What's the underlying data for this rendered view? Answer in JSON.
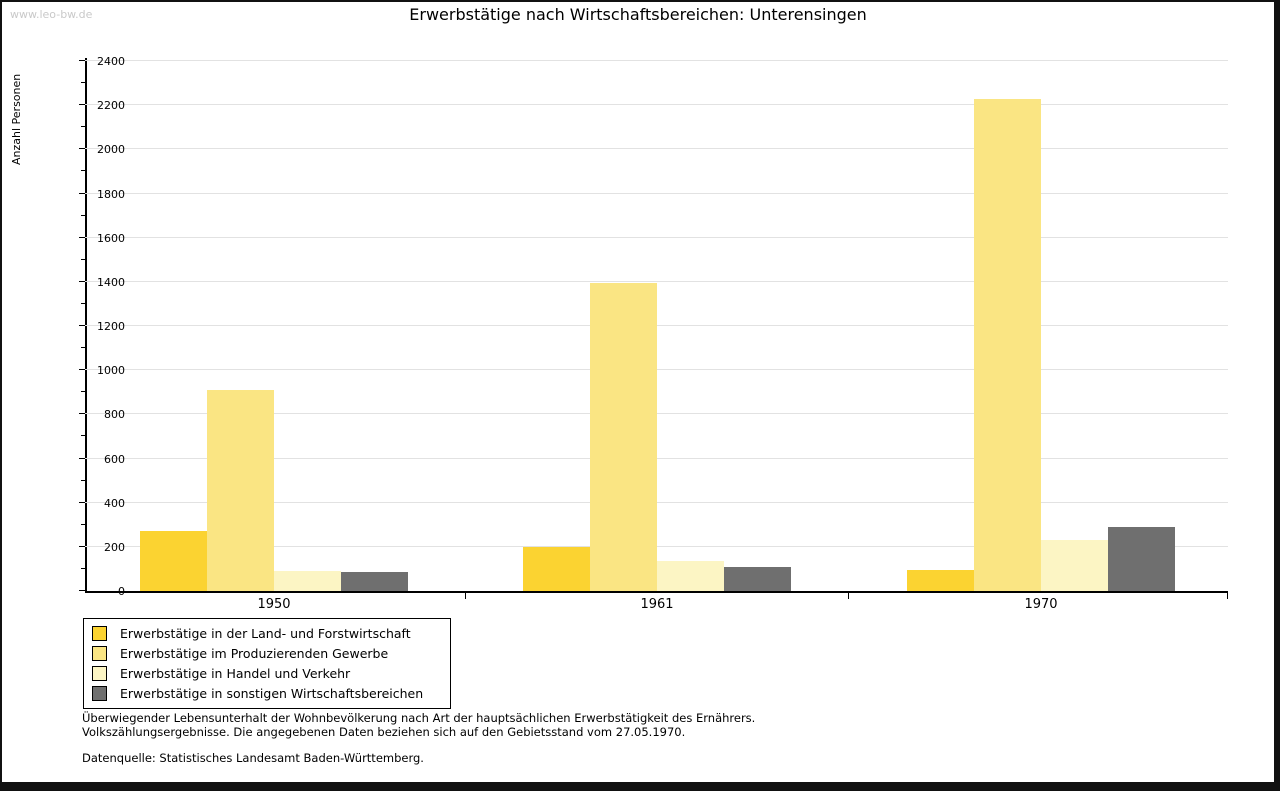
{
  "watermark": "www.leo-bw.de",
  "chart_data": {
    "type": "bar",
    "title": "Erwerbstätige nach Wirtschaftsbereichen: Unterensingen",
    "ylabel": "Anzahl Personen",
    "xlabel": "",
    "categories": [
      "1950",
      "1961",
      "1970"
    ],
    "series": [
      {
        "name": "Erwerbstätige in der Land- und Forstwirtschaft",
        "color": "#FBD331",
        "values": [
          270,
          200,
          95
        ]
      },
      {
        "name": "Erwerbstätige im Produzierenden Gewerbe",
        "color": "#FAE583",
        "values": [
          910,
          1395,
          2230
        ]
      },
      {
        "name": "Erwerbstätige in Handel und Verkehr",
        "color": "#FCF5C4",
        "values": [
          90,
          135,
          230
        ]
      },
      {
        "name": "Erwerbstätige in sonstigen Wirtschaftsbereichen",
        "color": "#6F6F6F",
        "values": [
          85,
          110,
          290
        ]
      }
    ],
    "ylim": [
      0,
      2400
    ],
    "ytick_step": 200,
    "minor_tick_step": 100,
    "grid": true,
    "legend_position": "bottom-left",
    "axis_color": "#000000",
    "gridline_color": "#e2e2e2"
  },
  "footnotes": {
    "line1": "Überwiegender Lebensunterhalt der Wohnbevölkerung nach Art der hauptsächlichen Erwerbstätigkeit des Ernährers.",
    "line2": "Volkszählungsergebnisse. Die angegebenen Daten beziehen sich auf den Gebietsstand vom 27.05.1970.",
    "source": "Datenquelle: Statistisches Landesamt Baden-Württemberg."
  }
}
